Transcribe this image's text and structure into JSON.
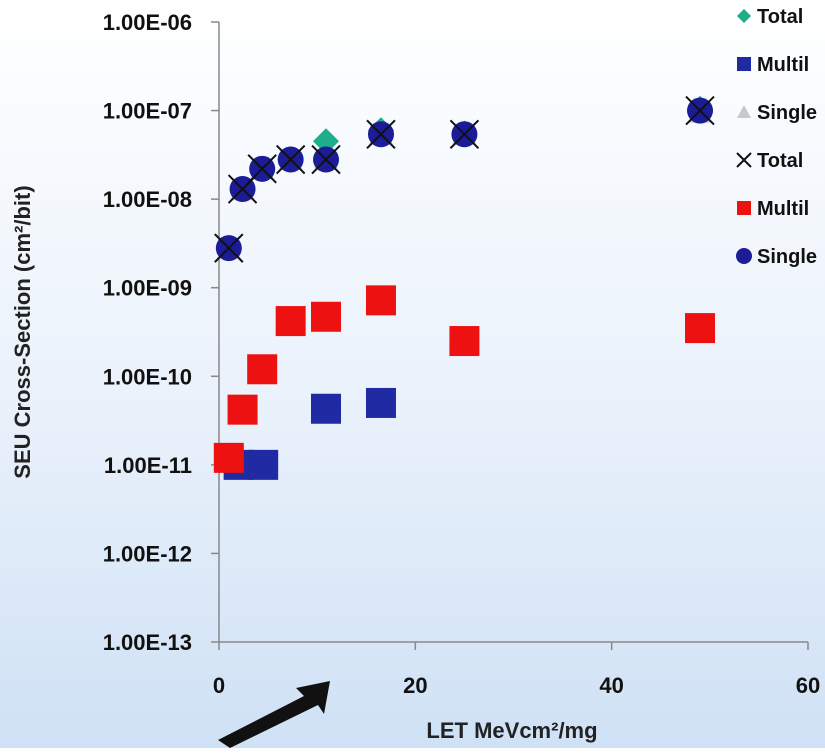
{
  "chart_data": {
    "type": "scatter",
    "title": "",
    "xlabel": "LET MeVcm²/mg",
    "ylabel": "SEU Cross-Section (cm²/bit)",
    "xlim": [
      0,
      60
    ],
    "ylim": [
      1e-13,
      1e-06
    ],
    "y_scale": "log",
    "grid": false,
    "legend_position": "top-right",
    "x_ticks": [
      "0",
      "20",
      "40",
      "60"
    ],
    "y_ticks": [
      "1.00E-13",
      "1.00E-12",
      "1.00E-11",
      "1.00E-10",
      "1.00E-09",
      "1.00E-08",
      "1.00E-07",
      "1.00E-06"
    ],
    "series": [
      {
        "name": "Total",
        "marker": "diamond",
        "color": "#1fae8c",
        "points": [
          [
            1.0,
            2.8e-09
          ],
          [
            2.4,
            1.3e-08
          ],
          [
            4.4,
            2.2e-08
          ],
          [
            7.3,
            2.8e-08
          ],
          [
            10.9,
            4.5e-08
          ],
          [
            16.5,
            6e-08
          ],
          [
            25.0,
            5.5e-08
          ],
          [
            49.0,
            1.05e-07
          ]
        ]
      },
      {
        "name": "Multil",
        "marker": "square",
        "color": "#1f2aa3",
        "points": [
          [
            2.0,
            1e-11
          ],
          [
            4.5,
            1e-11
          ],
          [
            10.9,
            4.3e-11
          ],
          [
            16.5,
            5e-11
          ]
        ]
      },
      {
        "name": "Single",
        "marker": "triangle",
        "color": "#c8c8c8",
        "points": [
          [
            1.0,
            2.8e-09
          ],
          [
            2.4,
            1.3e-08
          ],
          [
            4.4,
            2.2e-08
          ],
          [
            7.3,
            2.8e-08
          ],
          [
            10.9,
            2.9e-08
          ],
          [
            16.5,
            5.4e-08
          ],
          [
            25.0,
            5.4e-08
          ],
          [
            49.0,
            9.5e-08
          ]
        ]
      },
      {
        "name": "Total",
        "marker": "x",
        "color": "#111111",
        "points": [
          [
            1.0,
            2.8e-09
          ],
          [
            2.4,
            1.3e-08
          ],
          [
            4.4,
            2.2e-08
          ],
          [
            7.3,
            2.8e-08
          ],
          [
            10.9,
            2.8e-08
          ],
          [
            16.5,
            5.4e-08
          ],
          [
            25.0,
            5.4e-08
          ],
          [
            49.0,
            1e-07
          ]
        ]
      },
      {
        "name": "Multil",
        "marker": "square",
        "color": "#ee1111",
        "points": [
          [
            1.0,
            1.2e-11
          ],
          [
            2.4,
            4.2e-11
          ],
          [
            4.4,
            1.2e-10
          ],
          [
            7.3,
            4.2e-10
          ],
          [
            10.9,
            4.7e-10
          ],
          [
            16.5,
            7.2e-10
          ],
          [
            25.0,
            2.5e-10
          ],
          [
            49.0,
            3.5e-10
          ]
        ]
      },
      {
        "name": "Single",
        "marker": "circle",
        "color": "#1c1c96",
        "points": [
          [
            1.0,
            2.8e-09
          ],
          [
            2.4,
            1.3e-08
          ],
          [
            4.4,
            2.2e-08
          ],
          [
            7.3,
            2.8e-08
          ],
          [
            10.9,
            2.8e-08
          ],
          [
            16.5,
            5.4e-08
          ],
          [
            25.0,
            5.4e-08
          ],
          [
            49.0,
            1e-07
          ]
        ]
      }
    ]
  }
}
